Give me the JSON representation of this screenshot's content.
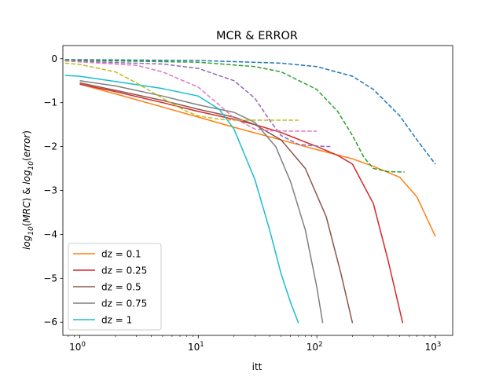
{
  "chart_data": {
    "type": "line",
    "title": "MCR & ERROR",
    "xlabel": "itt",
    "ylabel": "log10(MRC) & log10(error)",
    "x_scale": "log",
    "xlim": [
      0.72,
      1400
    ],
    "ylim": [
      -6.3,
      0.3
    ],
    "y_ticks": [
      0,
      -1,
      -2,
      -3,
      -4,
      -5,
      -6
    ],
    "y_tick_labels": [
      "0",
      "−1",
      "−2",
      "−3",
      "−4",
      "−5",
      "−6"
    ],
    "x_ticks": [
      1,
      10,
      100,
      1000
    ],
    "x_tick_labels": [
      "10^0",
      "10^1",
      "10^2",
      "10^3"
    ],
    "legend_position": "lower-left",
    "legend": [
      {
        "label": "dz = 0.1",
        "color": "#ff7f0e"
      },
      {
        "label": "dz = 0.25",
        "color": "#d62728"
      },
      {
        "label": "dz = 0.5",
        "color": "#8c564b"
      },
      {
        "label": "dz = 0.75",
        "color": "#7f7f7f"
      },
      {
        "label": "dz = 1",
        "color": "#17becf"
      }
    ],
    "series": [
      {
        "name": "dz = 0.1",
        "style": "solid",
        "color": "#ff7f0e",
        "x": [
          1,
          2,
          5,
          10,
          20,
          50,
          100,
          200,
          300,
          500,
          700,
          1000
        ],
        "y": [
          -0.58,
          -0.8,
          -1.1,
          -1.33,
          -1.56,
          -1.85,
          -2.07,
          -2.28,
          -2.45,
          -2.7,
          -3.15,
          -4.05
        ]
      },
      {
        "name": "dz = 0.25",
        "style": "solid",
        "color": "#d62728",
        "x": [
          1,
          2,
          5,
          10,
          20,
          30,
          50,
          100,
          150,
          200,
          300,
          400,
          530
        ],
        "y": [
          -0.58,
          -0.75,
          -1.0,
          -1.2,
          -1.38,
          -1.5,
          -1.68,
          -2.0,
          -2.2,
          -2.4,
          -3.3,
          -4.6,
          -6.02
        ]
      },
      {
        "name": "dz = 0.5",
        "style": "solid",
        "color": "#8c564b",
        "x": [
          1,
          2,
          5,
          10,
          20,
          30,
          50,
          80,
          120,
          160,
          200
        ],
        "y": [
          -0.55,
          -0.72,
          -0.95,
          -1.15,
          -1.33,
          -1.5,
          -1.85,
          -2.5,
          -3.6,
          -4.9,
          -6.02
        ]
      },
      {
        "name": "dz = 0.75",
        "style": "solid",
        "color": "#7f7f7f",
        "x": [
          1,
          2,
          5,
          10,
          20,
          30,
          45,
          60,
          80,
          100,
          112
        ],
        "y": [
          -0.5,
          -0.62,
          -0.85,
          -1.05,
          -1.22,
          -1.45,
          -2.0,
          -2.8,
          -3.9,
          -5.2,
          -6.02
        ]
      },
      {
        "name": "dz = 1",
        "style": "solid",
        "color": "#17becf",
        "x": [
          0.75,
          1,
          2,
          5,
          10,
          15,
          20,
          30,
          40,
          50,
          60,
          70
        ],
        "y": [
          -0.38,
          -0.4,
          -0.52,
          -0.68,
          -0.85,
          -1.15,
          -1.6,
          -2.75,
          -3.9,
          -4.9,
          -5.55,
          -6.02
        ]
      },
      {
        "style": "dashed",
        "color": "#1f77b4",
        "x": [
          0.75,
          10,
          50,
          100,
          200,
          300,
          500,
          700,
          1000
        ],
        "y": [
          -0.02,
          -0.04,
          -0.1,
          -0.18,
          -0.4,
          -0.7,
          -1.3,
          -1.85,
          -2.4
        ]
      },
      {
        "style": "dashed",
        "color": "#2ca02c",
        "x": [
          0.75,
          10,
          30,
          50,
          100,
          150,
          200,
          250,
          300,
          400,
          550
        ],
        "y": [
          -0.03,
          -0.08,
          -0.18,
          -0.3,
          -0.7,
          -1.2,
          -1.75,
          -2.25,
          -2.5,
          -2.57,
          -2.58
        ]
      },
      {
        "style": "dashed",
        "color": "#9467bd",
        "x": [
          0.75,
          5,
          10,
          20,
          30,
          40,
          50,
          70,
          100,
          130
        ],
        "y": [
          -0.05,
          -0.12,
          -0.22,
          -0.5,
          -0.9,
          -1.4,
          -1.75,
          -1.95,
          -1.99,
          -2.0
        ]
      },
      {
        "style": "dashed",
        "color": "#e377c2",
        "x": [
          0.75,
          3,
          5,
          10,
          15,
          20,
          30,
          40,
          60,
          100
        ],
        "y": [
          -0.05,
          -0.15,
          -0.3,
          -0.65,
          -1.05,
          -1.35,
          -1.6,
          -1.64,
          -1.65,
          -1.65
        ]
      },
      {
        "style": "dashed",
        "color": "#bcbd22",
        "x": [
          0.75,
          1,
          2,
          3,
          5,
          8,
          10,
          15,
          20,
          40,
          70
        ],
        "y": [
          -0.1,
          -0.13,
          -0.3,
          -0.55,
          -0.9,
          -1.2,
          -1.3,
          -1.38,
          -1.4,
          -1.4,
          -1.4
        ]
      }
    ]
  }
}
